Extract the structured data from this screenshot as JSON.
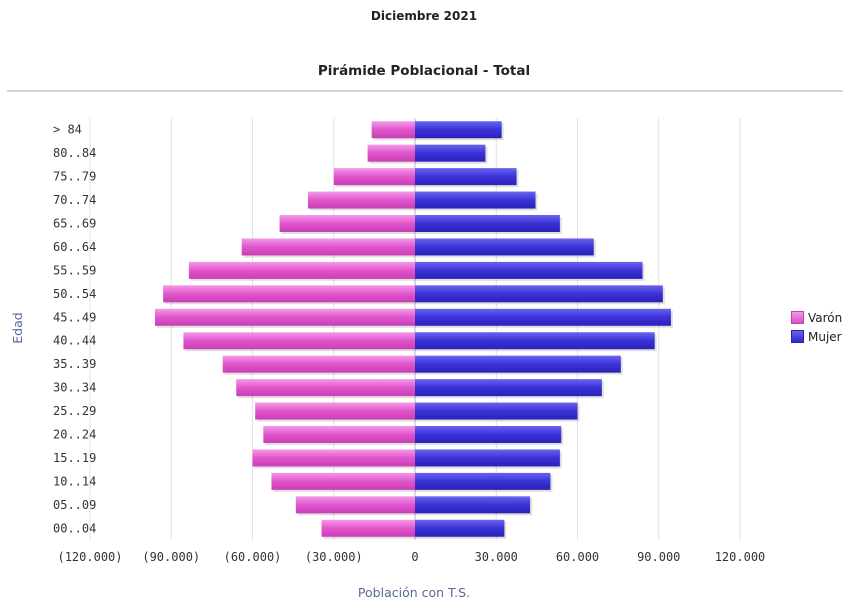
{
  "period": "Diciembre 2021",
  "chart_data": {
    "type": "bar",
    "orientation": "horizontal",
    "title": "Pirámide Poblacional - Total",
    "xlabel": "Población con T.S.",
    "ylabel": "Edad",
    "xlim": [
      -120000,
      120000
    ],
    "x_ticks": [
      -120000,
      -90000,
      -60000,
      -30000,
      0,
      30000,
      60000,
      90000,
      120000
    ],
    "x_tick_labels": [
      "(120.000)",
      "(90.000)",
      "(60.000)",
      "(30.000)",
      "0",
      "30.000",
      "60.000",
      "90.000",
      "120.000"
    ],
    "categories": [
      "> 84",
      "80..84",
      "75..79",
      "70..74",
      "65..69",
      "60..64",
      "55..59",
      "50..54",
      "45..49",
      "40..44",
      "35..39",
      "30..34",
      "25..29",
      "20..24",
      "15..19",
      "10..14",
      "05..09",
      "00..04"
    ],
    "series": [
      {
        "name": "Varón",
        "color": "#e055cc",
        "values": [
          -16000,
          -17500,
          -30000,
          -39500,
          -50000,
          -64000,
          -83500,
          -93000,
          -96000,
          -85500,
          -71000,
          -66000,
          -59000,
          -56000,
          -60000,
          -53000,
          -44000,
          -34500
        ]
      },
      {
        "name": "Mujer",
        "color": "#3a32d6",
        "values": [
          32000,
          26000,
          37500,
          44500,
          53500,
          66000,
          84000,
          91500,
          94500,
          88500,
          76000,
          69000,
          60000,
          54000,
          53500,
          50000,
          42500,
          33000
        ]
      }
    ],
    "grid": true,
    "legend_position": "right"
  }
}
